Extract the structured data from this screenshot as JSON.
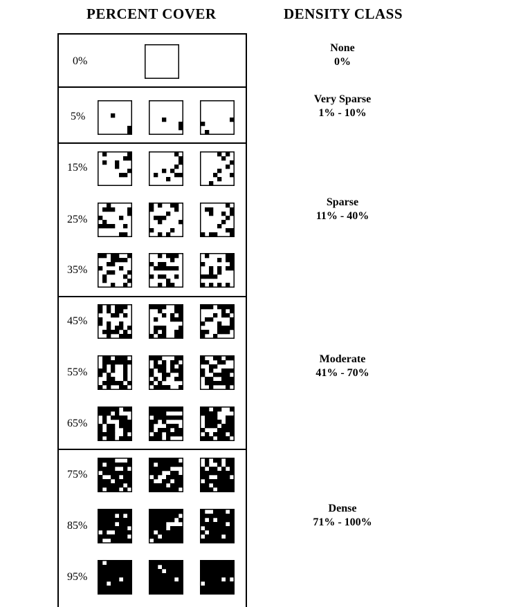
{
  "headings": {
    "percent_cover": "PERCENT COVER",
    "density_class": "DENSITY CLASS"
  },
  "rows": [
    {
      "label": "0%",
      "cover": 0
    },
    {
      "label": "5%",
      "cover": 5
    },
    {
      "label": "15%",
      "cover": 15
    },
    {
      "label": "25%",
      "cover": 25
    },
    {
      "label": "35%",
      "cover": 35
    },
    {
      "label": "45%",
      "cover": 45
    },
    {
      "label": "55%",
      "cover": 55
    },
    {
      "label": "65%",
      "cover": 65
    },
    {
      "label": "75%",
      "cover": 75
    },
    {
      "label": "85%",
      "cover": 85
    },
    {
      "label": "95%",
      "cover": 95
    }
  ],
  "density_classes": [
    {
      "name": "None",
      "range": "0%"
    },
    {
      "name": "Very Sparse",
      "range": "1% - 10%"
    },
    {
      "name": "Sparse",
      "range": "11% - 40%"
    },
    {
      "name": "Moderate",
      "range": "41% - 70%"
    },
    {
      "name": "Dense",
      "range": "71% - 100%"
    }
  ]
}
